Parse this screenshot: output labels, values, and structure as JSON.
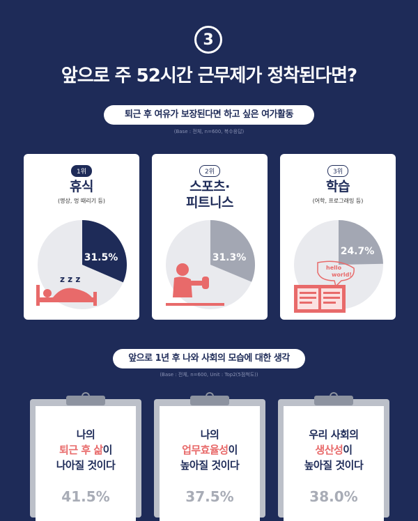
{
  "header": {
    "number": "3",
    "title": "앞으로 주 52시간 근무제가 정착된다면?"
  },
  "section1": {
    "heading": "퇴근 후 여유가 보장된다면 하고 싶은 여가활동",
    "base": "(Base : 전체, n=600, 복수응답)"
  },
  "section2": {
    "heading": "앞으로 1년 후 나와 사회의 모습에 대한 생각",
    "base": "(Base : 전체, n=600, Unit : Top2(5점척도))"
  },
  "colors": {
    "background": "#1e2b58",
    "accent": "#e86a6a",
    "pie_rest": "#e9eaee",
    "pie_first": "#1e2b58",
    "pie_other": "#a3a7b3"
  },
  "chart_data": [
    {
      "type": "pie",
      "title": "퇴근 후 여유가 보장된다면 하고 싶은 여가활동",
      "categories": [
        "휴식",
        "스포츠·피트니스",
        "학습"
      ],
      "ranks": [
        "1위",
        "2위",
        "3위"
      ],
      "subtitles": [
        "(명상, 멍 때리기 등)",
        "",
        "(어학, 프로그래밍 등)"
      ],
      "values": [
        31.5,
        31.3,
        24.7
      ],
      "labels": [
        "31.5%",
        "31.3%",
        "24.7%"
      ],
      "unit": "%",
      "illustration_text": [
        "z z z",
        "",
        "hello world!"
      ]
    },
    {
      "type": "table",
      "title": "앞으로 1년 후 나와 사회의 모습에 대한 생각",
      "rows": [
        {
          "lines": [
            "나의",
            "퇴근 후 삶이",
            "나아질 것이다"
          ],
          "highlight": "퇴근 후 삶",
          "value": 41.5,
          "label": "41.5%"
        },
        {
          "lines": [
            "나의",
            "업무효율성이",
            "높아질 것이다"
          ],
          "highlight": "업무효율성",
          "value": 37.5,
          "label": "37.5%"
        },
        {
          "lines": [
            "우리 사회의",
            "생산성이",
            "높아질 것이다"
          ],
          "highlight": "생산성",
          "value": 38.0,
          "label": "38.0%"
        }
      ]
    }
  ],
  "display": {
    "card1": {
      "rank": "1위",
      "name": "휴식",
      "sub": "(명상, 멍 때리기 등)",
      "label": "31.5%",
      "zzz": "z z z"
    },
    "card2": {
      "rank": "2위",
      "name_line1": "스포츠·",
      "name_line2": "피트니스",
      "label": "31.3%"
    },
    "card3": {
      "rank": "3위",
      "name": "학습",
      "sub": "(어학, 프로그래밍 등)",
      "label": "24.7%",
      "bubble1": "hello",
      "bubble2": "world!"
    },
    "clip1": {
      "l1": "나의",
      "l2a": "퇴근 후 삶",
      "l2b": "이",
      "l3": "나아질 것이다",
      "pct": "41.5%"
    },
    "clip2": {
      "l1": "나의",
      "l2a": "업무효율성",
      "l2b": "이",
      "l3": "높아질 것이다",
      "pct": "37.5%"
    },
    "clip3": {
      "l1": "우리 사회의",
      "l2a": "생산성",
      "l2b": "이",
      "l3": "높아질 것이다",
      "pct": "38.0%"
    }
  }
}
